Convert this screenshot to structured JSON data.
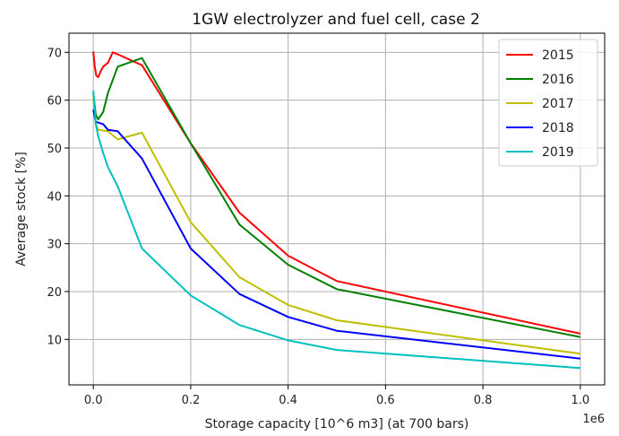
{
  "chart_data": {
    "type": "line",
    "title": "1GW electrolyzer and fuel cell, case 2",
    "xlabel": "Storage capacity [10^6 m3] (at 700 bars)",
    "ylabel": "Average stock [%]",
    "x_offset_label": "1e6",
    "xlim": [
      -0.05,
      1.05
    ],
    "ylim": [
      0.5,
      74
    ],
    "xticks": [
      0.0,
      0.2,
      0.4,
      0.6,
      0.8,
      1.0
    ],
    "xtick_labels": [
      "0.0",
      "0.2",
      "0.4",
      "0.6",
      "0.8",
      "1.0"
    ],
    "yticks": [
      10,
      20,
      30,
      40,
      50,
      60,
      70
    ],
    "ytick_labels": [
      "10",
      "20",
      "30",
      "40",
      "50",
      "60",
      "70"
    ],
    "grid": true,
    "legend_position": "top-right",
    "series": [
      {
        "name": "2015",
        "color": "#ff0000",
        "x": [
          0.0,
          0.003,
          0.006,
          0.01,
          0.015,
          0.02,
          0.03,
          0.04,
          0.05,
          0.1,
          0.2,
          0.3,
          0.4,
          0.5,
          1.0
        ],
        "y": [
          70.2,
          67.0,
          65.2,
          64.8,
          66.0,
          67.0,
          67.8,
          70.0,
          69.6,
          67.3,
          51.0,
          36.5,
          27.5,
          22.2,
          11.2
        ]
      },
      {
        "name": "2016",
        "color": "#008000",
        "x": [
          0.0,
          0.005,
          0.01,
          0.02,
          0.03,
          0.05,
          0.1,
          0.2,
          0.3,
          0.4,
          0.5,
          1.0
        ],
        "y": [
          61.5,
          57.0,
          56.0,
          57.5,
          61.5,
          67.0,
          68.8,
          51.0,
          34.0,
          25.6,
          20.5,
          10.5
        ]
      },
      {
        "name": "2017",
        "color": "#bfbf00",
        "x": [
          0.0,
          0.005,
          0.01,
          0.03,
          0.05,
          0.1,
          0.2,
          0.3,
          0.4,
          0.5,
          1.0
        ],
        "y": [
          60.5,
          55.0,
          53.8,
          53.5,
          51.8,
          53.2,
          34.5,
          23.0,
          17.2,
          14.0,
          7.0
        ]
      },
      {
        "name": "2018",
        "color": "#0000ff",
        "x": [
          0.0,
          0.005,
          0.01,
          0.02,
          0.03,
          0.05,
          0.1,
          0.2,
          0.3,
          0.4,
          0.5,
          1.0
        ],
        "y": [
          58.0,
          55.5,
          55.3,
          55.0,
          53.8,
          53.5,
          47.8,
          29.0,
          19.5,
          14.7,
          11.8,
          6.0
        ]
      },
      {
        "name": "2019",
        "color": "#00bfbf",
        "x": [
          0.0,
          0.005,
          0.01,
          0.02,
          0.03,
          0.05,
          0.1,
          0.2,
          0.3,
          0.4,
          0.5,
          1.0
        ],
        "y": [
          62.0,
          55.0,
          52.5,
          49.0,
          46.0,
          42.0,
          29.0,
          19.2,
          13.0,
          9.8,
          7.8,
          4.0
        ]
      }
    ]
  }
}
